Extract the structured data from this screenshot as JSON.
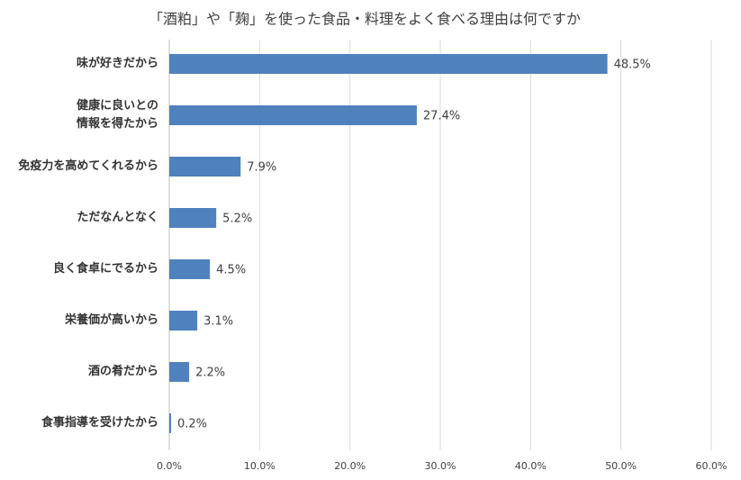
{
  "chart_data": {
    "type": "bar",
    "orientation": "horizontal",
    "title": "「酒粕」や「麹」を使った食品・料理をよく食べる理由は何ですか",
    "categories": [
      "味が好きだから",
      "健康に良いとの\n情報を得たから",
      "免疫力を高めてくれるから",
      "ただなんとなく",
      "良く食卓にでるから",
      "栄養価が高いから",
      "酒の肴だから",
      "食事指導を受けたから"
    ],
    "values": [
      48.5,
      27.4,
      7.9,
      5.2,
      4.5,
      3.1,
      2.2,
      0.2
    ],
    "value_labels": [
      "48.5%",
      "27.4%",
      "7.9%",
      "5.2%",
      "4.5%",
      "3.1%",
      "2.2%",
      "0.2%"
    ],
    "color": "#4f81bd",
    "xlim": [
      0,
      60
    ],
    "xticks": [
      {
        "value": 0,
        "label": "0.0%"
      },
      {
        "value": 10,
        "label": "10.0%"
      },
      {
        "value": 20,
        "label": "20.0%"
      },
      {
        "value": 30,
        "label": "30.0%"
      },
      {
        "value": 40,
        "label": "40.0%"
      },
      {
        "value": 50,
        "label": "50.0%"
      },
      {
        "value": 60,
        "label": "60.0%"
      }
    ],
    "grid": true
  }
}
